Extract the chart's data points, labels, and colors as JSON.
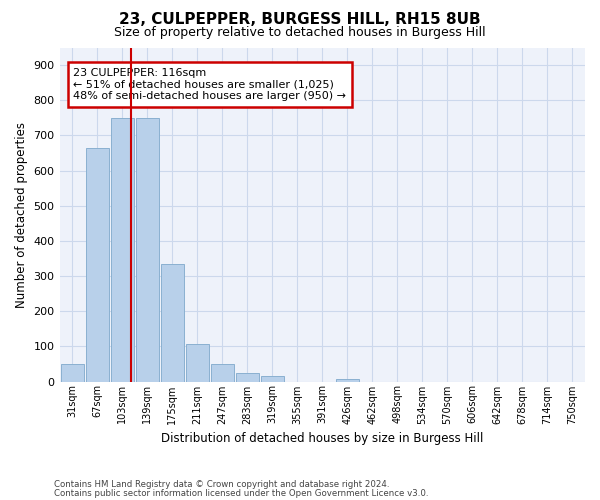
{
  "title": "23, CULPEPPER, BURGESS HILL, RH15 8UB",
  "subtitle": "Size of property relative to detached houses in Burgess Hill",
  "xlabel": "Distribution of detached houses by size in Burgess Hill",
  "ylabel": "Number of detached properties",
  "footnote1": "Contains HM Land Registry data © Crown copyright and database right 2024.",
  "footnote2": "Contains public sector information licensed under the Open Government Licence v3.0.",
  "bin_labels": [
    "31sqm",
    "67sqm",
    "103sqm",
    "139sqm",
    "175sqm",
    "211sqm",
    "247sqm",
    "283sqm",
    "319sqm",
    "355sqm",
    "391sqm",
    "426sqm",
    "462sqm",
    "498sqm",
    "534sqm",
    "570sqm",
    "606sqm",
    "642sqm",
    "678sqm",
    "714sqm",
    "750sqm"
  ],
  "bar_heights": [
    50,
    665,
    750,
    750,
    335,
    108,
    50,
    25,
    15,
    0,
    0,
    8,
    0,
    0,
    0,
    0,
    0,
    0,
    0,
    0,
    0
  ],
  "bar_color": "#b8d0ea",
  "bar_edgecolor": "#8ab0d0",
  "vline_x_idx": 2.22,
  "vline_color": "#cc0000",
  "annotation_text": "23 CULPEPPER: 116sqm\n← 51% of detached houses are smaller (1,025)\n48% of semi-detached houses are larger (950) →",
  "annotation_box_color": "#cc0000",
  "ylim": [
    0,
    950
  ],
  "yticks": [
    0,
    100,
    200,
    300,
    400,
    500,
    600,
    700,
    800,
    900
  ],
  "grid_color": "#ccd8ec",
  "bg_color": "#eef2fa",
  "n_bins": 21,
  "title_fontsize": 11,
  "subtitle_fontsize": 9
}
